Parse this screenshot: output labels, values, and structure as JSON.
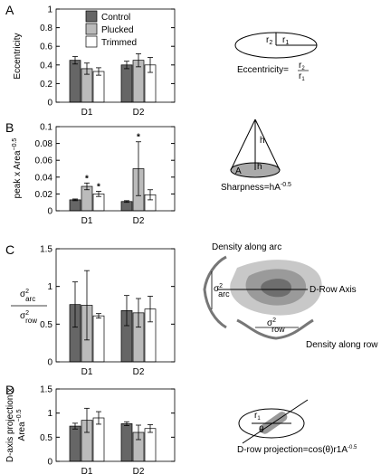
{
  "chart_data": [
    {
      "type": "bar",
      "panel": "A",
      "ylabel": "Eccentricity",
      "categories": [
        "D1",
        "D2"
      ],
      "ylim": [
        0,
        1
      ],
      "yticks": [
        0,
        0.2,
        0.4,
        0.6,
        0.8,
        1
      ],
      "series": [
        {
          "name": "Control",
          "color": "#666666",
          "values": [
            0.45,
            0.4
          ],
          "errors": [
            0.04,
            0.04
          ]
        },
        {
          "name": "Plucked",
          "color": "#bbbbbb",
          "values": [
            0.36,
            0.45
          ],
          "errors": [
            0.06,
            0.07
          ]
        },
        {
          "name": "Trimmed",
          "color": "#ffffff",
          "values": [
            0.33,
            0.4
          ],
          "errors": [
            0.04,
            0.08
          ]
        }
      ]
    },
    {
      "type": "bar",
      "panel": "B",
      "ylabel": "peak x Area",
      "ylabel_sup": "−0.5",
      "categories": [
        "D1",
        "D2"
      ],
      "ylim": [
        0,
        0.1
      ],
      "yticks": [
        0,
        0.02,
        0.04,
        0.06,
        0.08,
        0.1
      ],
      "series": [
        {
          "color": "#666666",
          "values": [
            0.013,
            0.011
          ],
          "errors": [
            0.001,
            0.001
          ]
        },
        {
          "color": "#bbbbbb",
          "values": [
            0.029,
            0.05
          ],
          "errors": [
            0.004,
            0.032
          ]
        },
        {
          "color": "#ffffff",
          "values": [
            0.02,
            0.019
          ],
          "errors": [
            0.003,
            0.006
          ]
        }
      ],
      "annotations": [
        {
          "text": "*",
          "category": 0,
          "series": 1
        },
        {
          "text": "*",
          "category": 0,
          "series": 2
        },
        {
          "text": "*",
          "category": 1,
          "series": 1
        }
      ]
    },
    {
      "type": "bar",
      "panel": "C",
      "ylabel_num": [
        "σ",
        "2",
        "arc"
      ],
      "ylabel_den": [
        "σ",
        "2",
        "row"
      ],
      "categories": [
        "D1",
        "D2"
      ],
      "ylim": [
        0,
        1.5
      ],
      "yticks": [
        0,
        0.5,
        1,
        1.5
      ],
      "series": [
        {
          "color": "#666666",
          "values": [
            0.76,
            0.68
          ],
          "errors": [
            0.3,
            0.2
          ]
        },
        {
          "color": "#bbbbbb",
          "values": [
            0.75,
            0.65
          ],
          "errors": [
            0.46,
            0.19
          ]
        },
        {
          "color": "#ffffff",
          "values": [
            0.61,
            0.7
          ],
          "errors": [
            0.03,
            0.17
          ]
        }
      ]
    },
    {
      "type": "bar",
      "panel": "D",
      "ylabel": [
        "D-axis projection x",
        "Area"
      ],
      "ylabel_sup": "−0.5",
      "categories": [
        "D1",
        "D2"
      ],
      "ylim": [
        0,
        1.5
      ],
      "yticks": [
        0,
        0.5,
        1,
        1.5
      ],
      "series": [
        {
          "color": "#666666",
          "values": [
            0.73,
            0.78
          ],
          "errors": [
            0.06,
            0.04
          ]
        },
        {
          "color": "#bbbbbb",
          "values": [
            0.85,
            0.6
          ],
          "errors": [
            0.25,
            0.15
          ]
        },
        {
          "color": "#ffffff",
          "values": [
            0.9,
            0.68
          ],
          "errors": [
            0.13,
            0.08
          ]
        }
      ]
    }
  ],
  "diagrams": {
    "eccentricity": {
      "r2": "r",
      "r2_sub": "2",
      "r1": "r",
      "r1_sub": "1",
      "formula": "Eccentricity=",
      "num": "r",
      "num_sub": "2",
      "den": "r",
      "den_sub": "1"
    },
    "sharpness": {
      "h": "h",
      "h_base": "h",
      "area": "A",
      "formula": "Sharpness=hA",
      "formula_sup": "-0.5"
    },
    "density": {
      "arc_title": "Density along arc",
      "axis": "D-Row Axis",
      "row_title": "Density along row",
      "arc_sym": "σ",
      "arc_sup": "2",
      "arc_sub": "arc",
      "row_sym": "σ",
      "row_sup": "2",
      "row_sub": "row"
    },
    "projection": {
      "r1": "r",
      "r1_sub": "1",
      "theta": "θ",
      "formula": "D-row projection=cos(θ)r1A",
      "formula_sup": "-0.5"
    }
  }
}
